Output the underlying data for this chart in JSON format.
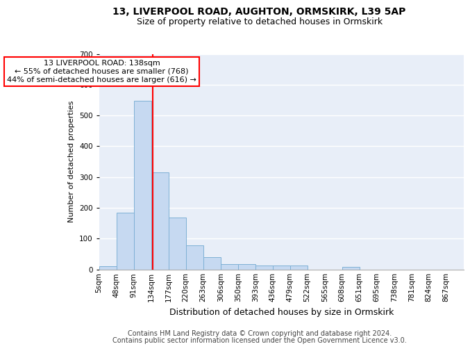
{
  "title1": "13, LIVERPOOL ROAD, AUGHTON, ORMSKIRK, L39 5AP",
  "title2": "Size of property relative to detached houses in Ormskirk",
  "xlabel": "Distribution of detached houses by size in Ormskirk",
  "ylabel": "Number of detached properties",
  "footnote1": "Contains HM Land Registry data © Crown copyright and database right 2024.",
  "footnote2": "Contains public sector information licensed under the Open Government Licence v3.0.",
  "bin_labels": [
    "5sqm",
    "48sqm",
    "91sqm",
    "134sqm",
    "177sqm",
    "220sqm",
    "263sqm",
    "306sqm",
    "350sqm",
    "393sqm",
    "436sqm",
    "479sqm",
    "522sqm",
    "565sqm",
    "608sqm",
    "651sqm",
    "695sqm",
    "738sqm",
    "781sqm",
    "824sqm",
    "867sqm"
  ],
  "bar_values": [
    10,
    185,
    548,
    315,
    168,
    78,
    40,
    18,
    18,
    12,
    12,
    12,
    0,
    0,
    8,
    0,
    0,
    0,
    0,
    0,
    0
  ],
  "bar_color": "#c6d9f1",
  "bar_edge_color": "#7eb0d5",
  "annotation_text": "13 LIVERPOOL ROAD: 138sqm\n← 55% of detached houses are smaller (768)\n44% of semi-detached houses are larger (616) →",
  "annotation_box_color": "white",
  "annotation_box_edge": "red",
  "vline_color": "red",
  "ylim": [
    0,
    700
  ],
  "yticks": [
    0,
    100,
    200,
    300,
    400,
    500,
    600,
    700
  ],
  "background_color": "#e8eef8",
  "grid_color": "white",
  "title1_fontsize": 10,
  "title2_fontsize": 9,
  "xlabel_fontsize": 9,
  "ylabel_fontsize": 8,
  "tick_fontsize": 7.5,
  "annotation_fontsize": 8,
  "footnote_fontsize": 7
}
